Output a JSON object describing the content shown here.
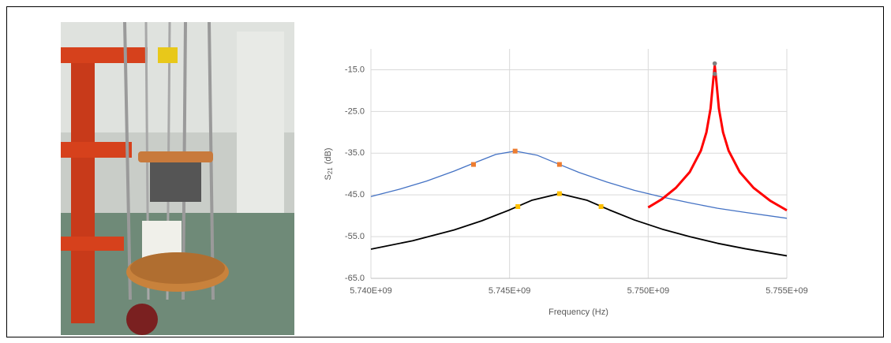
{
  "chart_data": {
    "type": "line",
    "xlabel": "Frequency (Hz)",
    "ylabel": {
      "main": "S",
      "sub": "21",
      "unit": "(dB)"
    },
    "xlim": [
      5740000000,
      5755000000
    ],
    "xticks": [
      {
        "value": 5740000000,
        "label": "5.740E+09"
      },
      {
        "value": 5745000000,
        "label": "5.745E+09"
      },
      {
        "value": 5750000000,
        "label": "5.750E+09"
      },
      {
        "value": 5755000000,
        "label": "5.755E+09"
      }
    ],
    "ylim": [
      -65,
      -10
    ],
    "yticks": [
      {
        "value": -65,
        "label": "-65.0"
      },
      {
        "value": -55,
        "label": "-55.0"
      },
      {
        "value": -45,
        "label": "-45.0"
      },
      {
        "value": -35,
        "label": "-35.0"
      },
      {
        "value": -25,
        "label": "-25.0"
      },
      {
        "value": -15,
        "label": "-15.0"
      }
    ],
    "grid": true,
    "series": [
      {
        "color": "#4472c4",
        "width": 1.3,
        "marker": false,
        "x": [
          5740000000,
          5741000000,
          5742000000,
          5743000000,
          5743700000,
          5744500000,
          5745200000,
          5746000000,
          5746800000,
          5747500000,
          5748500000,
          5749500000,
          5750500000,
          5751500000,
          5752500000,
          5753500000,
          5755000000
        ],
        "values": [
          -45.4,
          -43.7,
          -41.7,
          -39.3,
          -37.4,
          -35.3,
          -34.5,
          -35.5,
          -37.7,
          -39.6,
          -41.9,
          -43.9,
          -45.5,
          -46.9,
          -48.2,
          -49.2,
          -50.6
        ]
      },
      {
        "color": "#000000",
        "width": 1.8,
        "marker": false,
        "x": [
          5740000000,
          5741500000,
          5743000000,
          5744000000,
          5745000000,
          5745800000,
          5746800000,
          5747800000,
          5748600000,
          5749500000,
          5750500000,
          5751500000,
          5752500000,
          5753500000,
          5755000000
        ],
        "values": [
          -58.0,
          -56.0,
          -53.4,
          -51.2,
          -48.6,
          -46.3,
          -44.7,
          -46.3,
          -48.6,
          -51.0,
          -53.2,
          -55.0,
          -56.6,
          -57.9,
          -59.6
        ]
      },
      {
        "color": "#ff0000",
        "width": 3,
        "marker": false,
        "x": [
          5750000000,
          5750500000,
          5751000000,
          5751500000,
          5751900000,
          5752100000,
          5752250000,
          5752350000,
          5752400000,
          5752450000,
          5752550000,
          5752700000,
          5752900000,
          5753300000,
          5753800000,
          5754400000,
          5755000000
        ],
        "values": [
          -48.0,
          -46.0,
          -43.3,
          -39.5,
          -34.4,
          -30.0,
          -24.3,
          -17.2,
          -14.0,
          -17.2,
          -24.3,
          -30.0,
          -34.4,
          -39.5,
          -43.3,
          -46.4,
          -48.7
        ]
      },
      {
        "color": "#ed7d31",
        "marker": true,
        "x": [
          5743700000,
          5745200000,
          5746800000
        ],
        "values": [
          -37.7,
          -34.5,
          -37.7
        ]
      },
      {
        "color": "#ffc000",
        "marker": true,
        "x": [
          5745300000,
          5746800000,
          5748300000
        ],
        "values": [
          -47.8,
          -44.7,
          -47.8
        ]
      },
      {
        "color": "#7f7f7f",
        "marker": true,
        "round": true,
        "x": [
          5752400000,
          5752400000
        ],
        "values": [
          -13.5,
          -16.0
        ]
      }
    ]
  }
}
